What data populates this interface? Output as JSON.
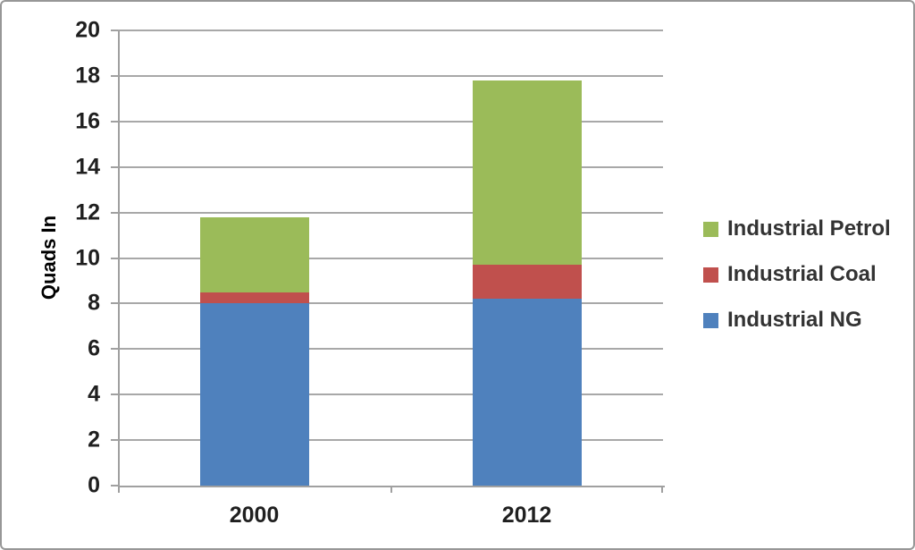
{
  "frame": {
    "background_color": "#ffffff",
    "border_color": "#979797"
  },
  "chart_data": {
    "type": "bar",
    "stacked": true,
    "title": "",
    "xlabel": "",
    "ylabel": "Quads In",
    "categories": [
      "2000",
      "2012"
    ],
    "series": [
      {
        "name": "Industrial NG",
        "color": "#4F81BD",
        "values": [
          8.0,
          8.2
        ]
      },
      {
        "name": "Industrial Coal",
        "color": "#C0504D",
        "values": [
          0.5,
          1.5
        ]
      },
      {
        "name": "Industrial Petrol",
        "color": "#9BBB59",
        "values": [
          3.3,
          8.1
        ]
      }
    ],
    "stack_totals": [
      11.8,
      17.8
    ],
    "ylim": [
      0,
      20
    ],
    "yticks": [
      0,
      2,
      4,
      6,
      8,
      10,
      12,
      14,
      16,
      18,
      20
    ],
    "grid": true,
    "gridline_color": "#a8a8a8",
    "axis_color": "#a0a0a0",
    "tick_label_color": "#1f1f1f",
    "legend_position": "right",
    "legend_order_top_to_bottom": [
      "Industrial Petrol",
      "Industrial Coal",
      "Industrial NG"
    ]
  }
}
